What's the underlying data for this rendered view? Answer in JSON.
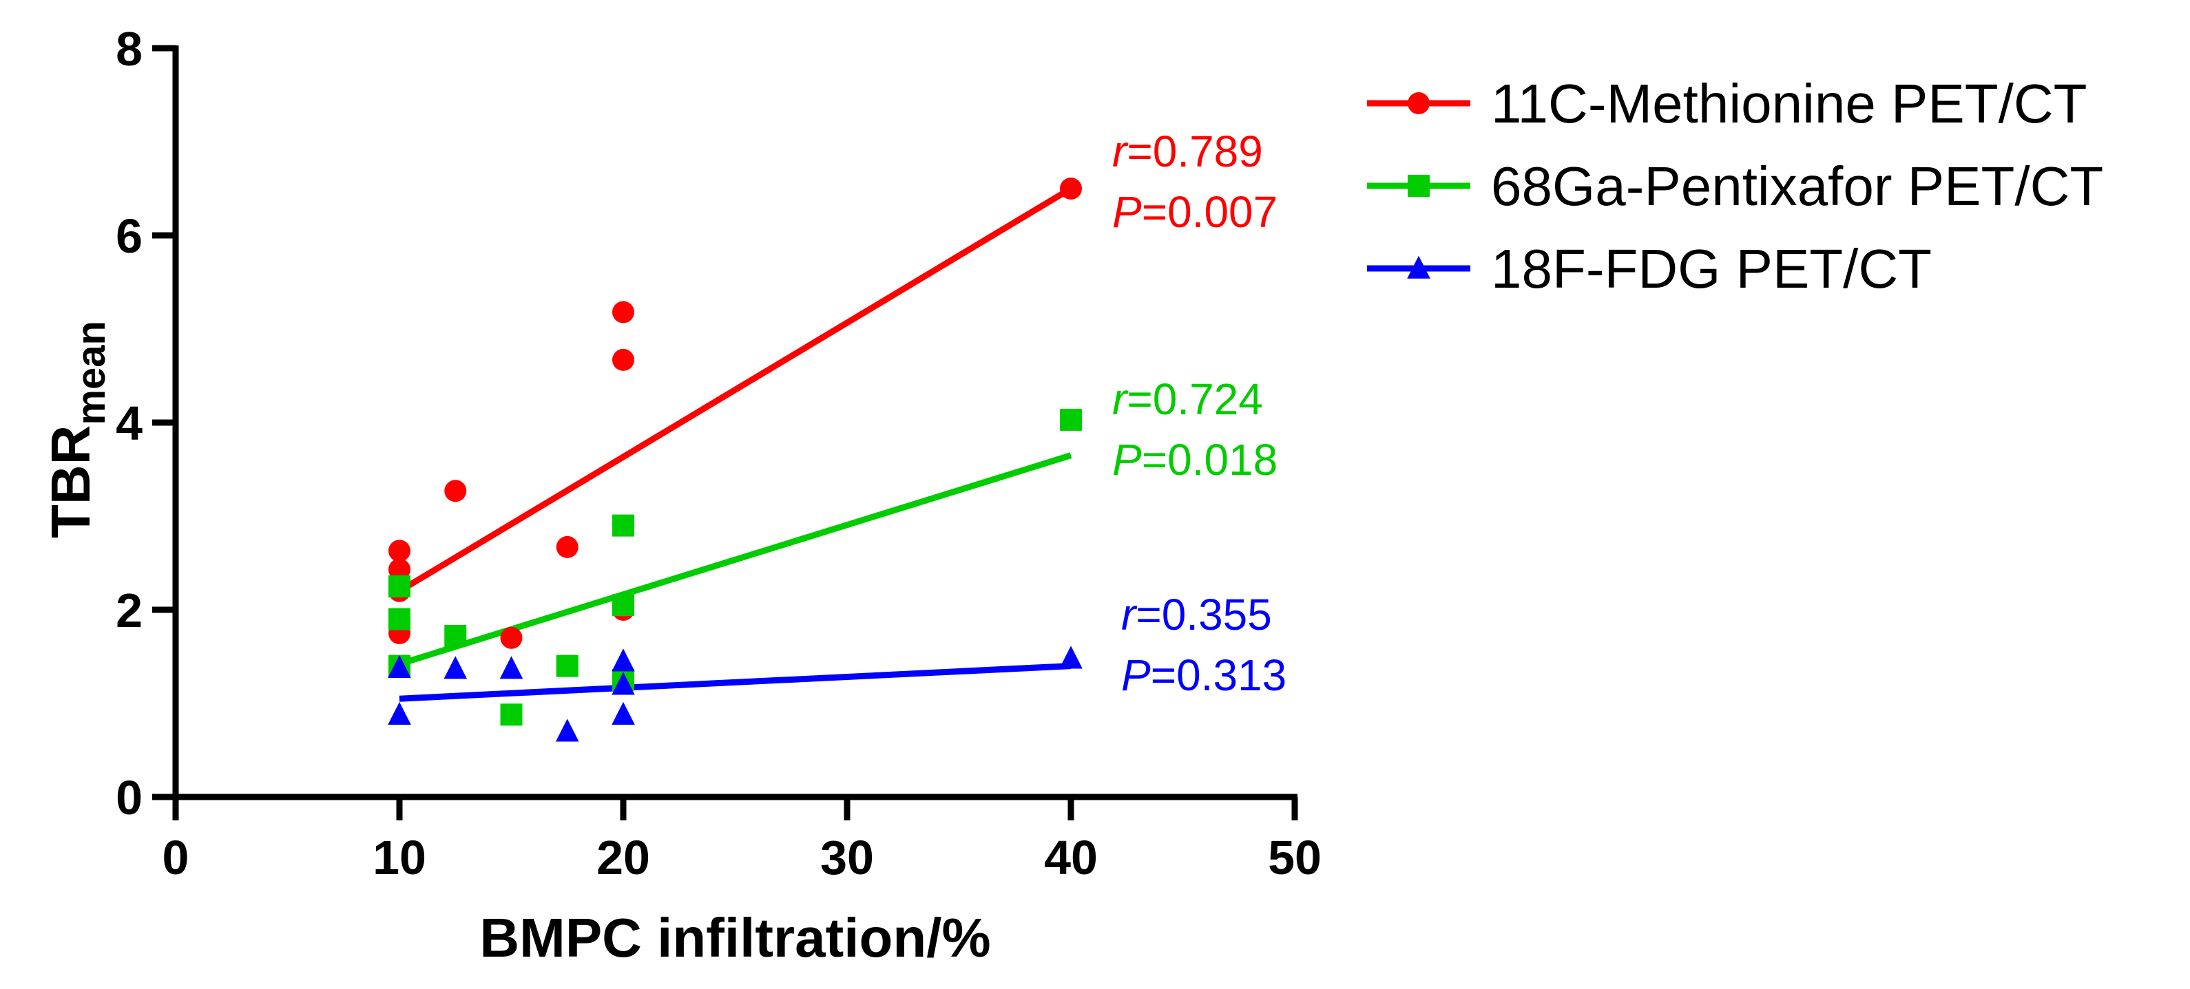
{
  "chart_data": {
    "type": "scatter",
    "xlabel": "BMPC infiltration/%",
    "ylabel": "TBR",
    "ylabel_subscript": "mean",
    "xlim": [
      0,
      50
    ],
    "ylim": [
      0,
      8
    ],
    "x_ticks": [
      0,
      10,
      20,
      30,
      40,
      50
    ],
    "y_ticks": [
      0,
      2,
      4,
      6,
      8
    ],
    "grid": false,
    "legend_position": "top-right",
    "series": [
      {
        "name": "11C-Methionine PET/CT",
        "color": "#ff0000",
        "marker": "circle",
        "points": [
          [
            10,
            2.63
          ],
          [
            10,
            2.43
          ],
          [
            10,
            2.2
          ],
          [
            10,
            1.75
          ],
          [
            12.5,
            3.27
          ],
          [
            15,
            1.7
          ],
          [
            17.5,
            2.67
          ],
          [
            20,
            5.18
          ],
          [
            20,
            4.67
          ],
          [
            20,
            2.0
          ],
          [
            40,
            6.5
          ]
        ],
        "fit_line": [
          [
            10,
            2.2
          ],
          [
            40,
            6.5
          ]
        ],
        "r_label": "r",
        "r_value": "=0.789",
        "p_label": "P",
        "p_value": "=0.007"
      },
      {
        "name": "68Ga-Pentixafor PET/CT",
        "color": "#00cc00",
        "marker": "square",
        "points": [
          [
            10,
            2.25
          ],
          [
            10,
            1.9
          ],
          [
            10,
            1.4
          ],
          [
            12.5,
            1.72
          ],
          [
            15,
            0.88
          ],
          [
            17.5,
            1.4
          ],
          [
            20,
            2.9
          ],
          [
            20,
            2.05
          ],
          [
            20,
            1.25
          ],
          [
            40,
            4.03
          ]
        ],
        "fit_line": [
          [
            10,
            1.42
          ],
          [
            40,
            3.65
          ]
        ],
        "r_label": "r",
        "r_value": "=0.724",
        "p_label": "P",
        "p_value": "=0.018"
      },
      {
        "name": "18F-FDG PET/CT",
        "color": "#0000ff",
        "marker": "triangle",
        "points": [
          [
            10,
            1.38
          ],
          [
            10,
            0.88
          ],
          [
            12.5,
            1.37
          ],
          [
            15,
            1.37
          ],
          [
            17.5,
            0.7
          ],
          [
            20,
            1.45
          ],
          [
            20,
            1.2
          ],
          [
            20,
            0.88
          ],
          [
            40,
            1.48
          ]
        ],
        "fit_line": [
          [
            10,
            1.05
          ],
          [
            40,
            1.4
          ]
        ],
        "r_label": "r",
        "r_value": "=0.355",
        "p_label": "P",
        "p_value": "=0.313"
      }
    ]
  }
}
